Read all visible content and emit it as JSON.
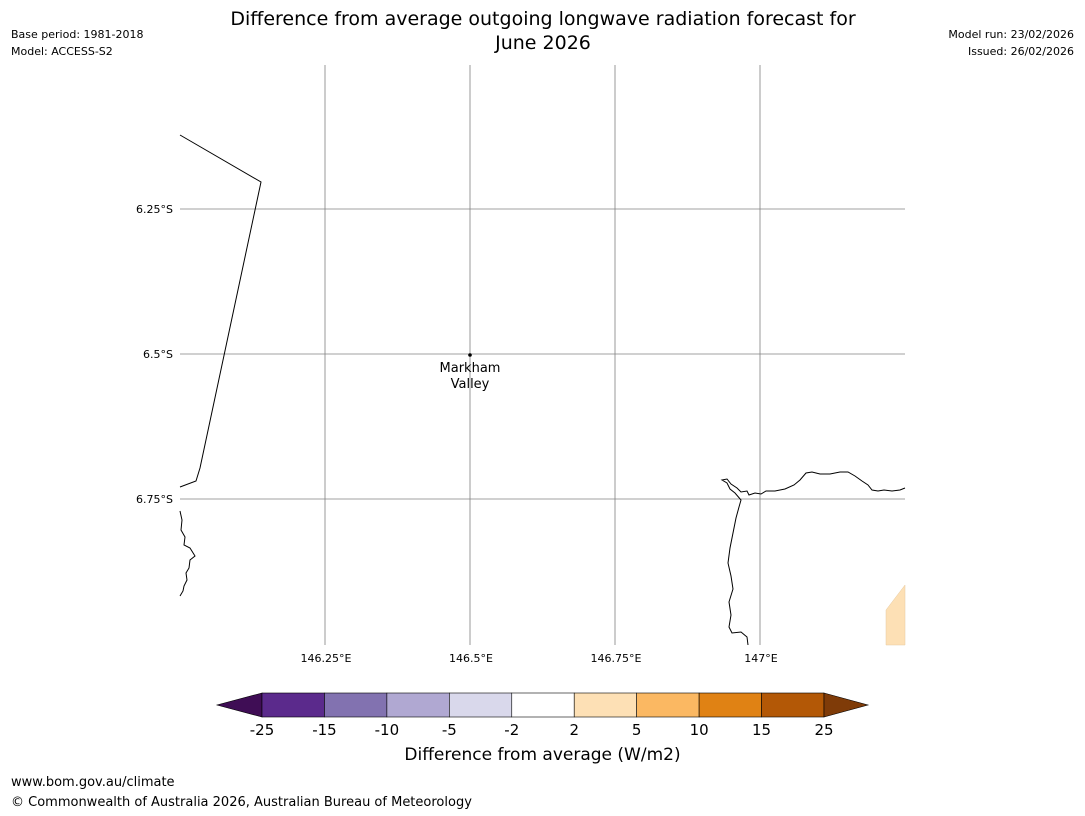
{
  "header": {
    "base_period": "Base period: 1981-2018",
    "model": "Model: ACCESS-S2",
    "model_run": "Model run: 23/02/2026",
    "issued": "Issued: 26/02/2026",
    "title_line1": "Difference from average outgoing longwave radiation forecast for",
    "title_line2": "June 2026"
  },
  "map": {
    "lat_labels": [
      "6.25°S",
      "6.5°S",
      "6.75°S"
    ],
    "lon_labels": [
      "146.25°E",
      "146.5°E",
      "146.75°E",
      "147°E"
    ],
    "city": {
      "name_line1": "Markham",
      "name_line2": "Valley"
    },
    "colors": {
      "grid": "#808080",
      "coast": "#000000",
      "positive_5_10": "#fde0b5"
    }
  },
  "colorbar": {
    "title": "Difference from average (W/m2)",
    "ticks": [
      "-25",
      "-15",
      "-10",
      "-5",
      "-2",
      "2",
      "5",
      "10",
      "15",
      "25"
    ],
    "colors": [
      "#3f0d55",
      "#5b2a8c",
      "#8272b0",
      "#b0a8d2",
      "#d9d8eb",
      "#ffffff",
      "#fde0b5",
      "#fbb862",
      "#e08214",
      "#b35806",
      "#7f3b08"
    ]
  },
  "footer": {
    "url": "www.bom.gov.au/climate",
    "copyright": "© Commonwealth of Australia 2026, Australian Bureau of Meteorology"
  }
}
